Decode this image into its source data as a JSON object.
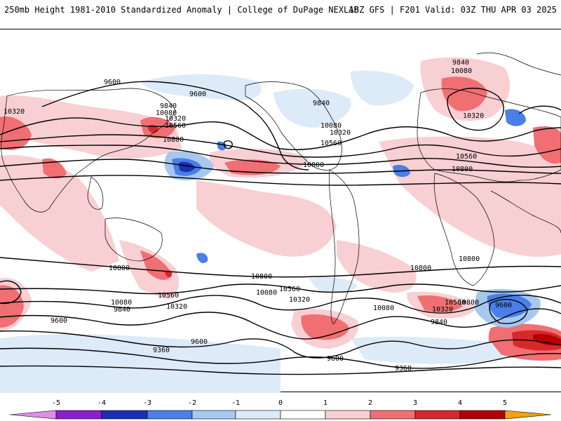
{
  "header": {
    "title": "250mb Height 1981-2010 Standardized Anomaly | College of DuPage NEXLAB",
    "run_info": "18Z GFS | F201 Valid: 03Z THU APR 03 2025"
  },
  "map": {
    "projection": "cylindrical equidistant, global",
    "contour_labels": [
      "9600",
      "9600",
      "9840",
      "10080",
      "10320",
      "10320",
      "10560",
      "10800",
      "9840",
      "10080",
      "10320",
      "10560",
      "10800",
      "9840",
      "10080",
      "10320",
      "10560",
      "10800",
      "10800",
      "10800",
      "10800",
      "10560",
      "10320",
      "10080",
      "9840",
      "9600",
      "9360",
      "9600",
      "10800",
      "10560",
      "10320",
      "10080",
      "10800",
      "10560",
      "10320",
      "10080",
      "9840",
      "9600",
      "9600",
      "9360"
    ],
    "contour_interval": "240 m",
    "land_outline_color": "#000000",
    "contour_color": "#000000"
  },
  "colorbar": {
    "ticks": [
      "-5",
      "-4",
      "-3",
      "-2",
      "-1",
      "0",
      "1",
      "2",
      "3",
      "4",
      "5"
    ],
    "colors": {
      "lt-5": "#e28de6",
      "-5_-4": "#8b1fc9",
      "-4_-3": "#1e2fb4",
      "-3_-2": "#4a7ee8",
      "-2_-1": "#a6c8ee",
      "-1_0": "#ddeaf8",
      "0_1": "#ffffff",
      "1_2": "#f8cfd2",
      "2_3": "#f06f73",
      "3_4": "#d7282b",
      "4_5": "#b30000",
      "5_plus": "#f6a00c",
      "gt_5": "#f6c531"
    }
  }
}
